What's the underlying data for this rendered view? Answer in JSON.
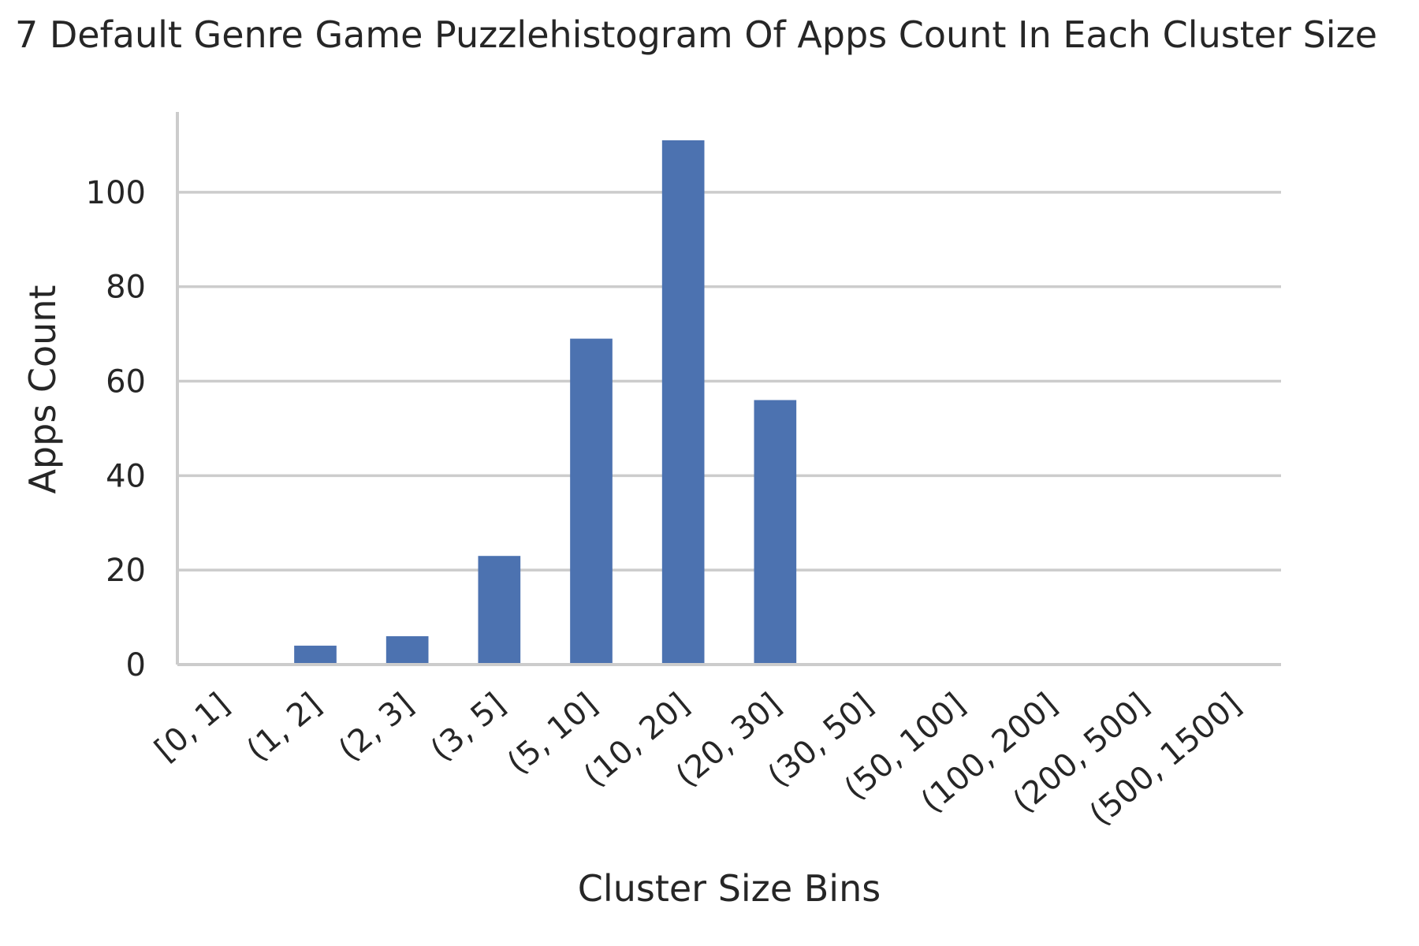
{
  "chart_data": {
    "type": "bar",
    "title": "7 Default Genre Game Puzzlehistogram Of Apps Count In Each Cluster Size",
    "xlabel": "Cluster Size Bins",
    "ylabel": "Apps Count",
    "categories": [
      "[0, 1]",
      "(1, 2]",
      "(2, 3]",
      "(3, 5]",
      "(5, 10]",
      "(10, 20]",
      "(20, 30]",
      "(30, 50]",
      "(50, 100]",
      "(100, 200]",
      "(200, 500]",
      "(500, 1500]"
    ],
    "values": [
      0,
      4,
      6,
      23,
      69,
      111,
      56,
      0,
      0,
      0,
      0,
      0
    ],
    "yticks": [
      "0",
      "20",
      "40",
      "60",
      "80",
      "100"
    ],
    "ylim": [
      0,
      117
    ],
    "grid": "y",
    "bar_color": "#4c72b0"
  }
}
